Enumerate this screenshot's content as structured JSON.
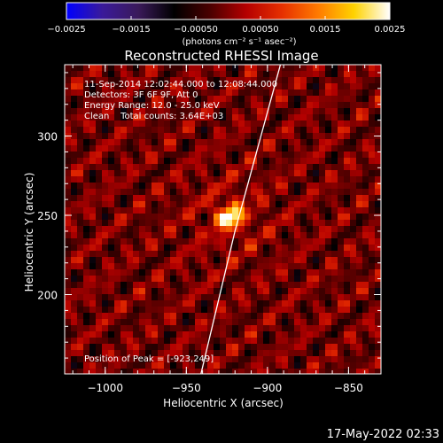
{
  "colorbar": {
    "ticks": [
      "-0.0025",
      "-0.0015",
      "-0.00050",
      "0.00050",
      "0.0015",
      "0.0025"
    ],
    "unit": "(photons cm⁻² s⁻¹ asec⁻²)",
    "range": [
      -0.0025,
      0.0025
    ],
    "colors": [
      "#0000ff",
      "#3a1a9a",
      "#3a1a5a",
      "#000000",
      "#4a0000",
      "#b50000",
      "#e63000",
      "#ff7a00",
      "#ffd200",
      "#ffffff"
    ]
  },
  "footer": {
    "date": "17-May-2022 02:33"
  },
  "chart_data": {
    "type": "heatmap",
    "title": "Reconstructed RHESSI Image",
    "xlabel": "Heliocentric X (arcsec)",
    "ylabel": "Heliocentric Y (arcsec)",
    "xlim": [
      -1025,
      -830
    ],
    "ylim": [
      150,
      345
    ],
    "x_ticks": [
      {
        "value": -1000,
        "label": "−1000"
      },
      {
        "value": -950,
        "label": "−950"
      },
      {
        "value": -900,
        "label": "−900"
      },
      {
        "value": -850,
        "label": "−850"
      }
    ],
    "y_ticks": [
      {
        "value": 200,
        "label": "200"
      },
      {
        "value": 250,
        "label": "250"
      },
      {
        "value": 300,
        "label": "300"
      }
    ],
    "annotations": [
      "11-Sep-2014 12:02:44.000 to 12:08:44.000",
      "Detectors: 3F 6F 9F, Att 0",
      "Energy Range: 12.0 - 25.0 keV",
      "Clean    Total counts: 3.64E+03"
    ],
    "peak_label": "Position of Peak = [-923,249]",
    "peak": [
      -923,
      249
    ],
    "limb": [
      [
        -941,
        150
      ],
      [
        -934,
        180
      ],
      [
        -927,
        210
      ],
      [
        -920,
        240
      ],
      [
        -912,
        270
      ],
      [
        -904,
        300
      ],
      [
        -896,
        330
      ],
      [
        -892,
        345
      ]
    ]
  }
}
